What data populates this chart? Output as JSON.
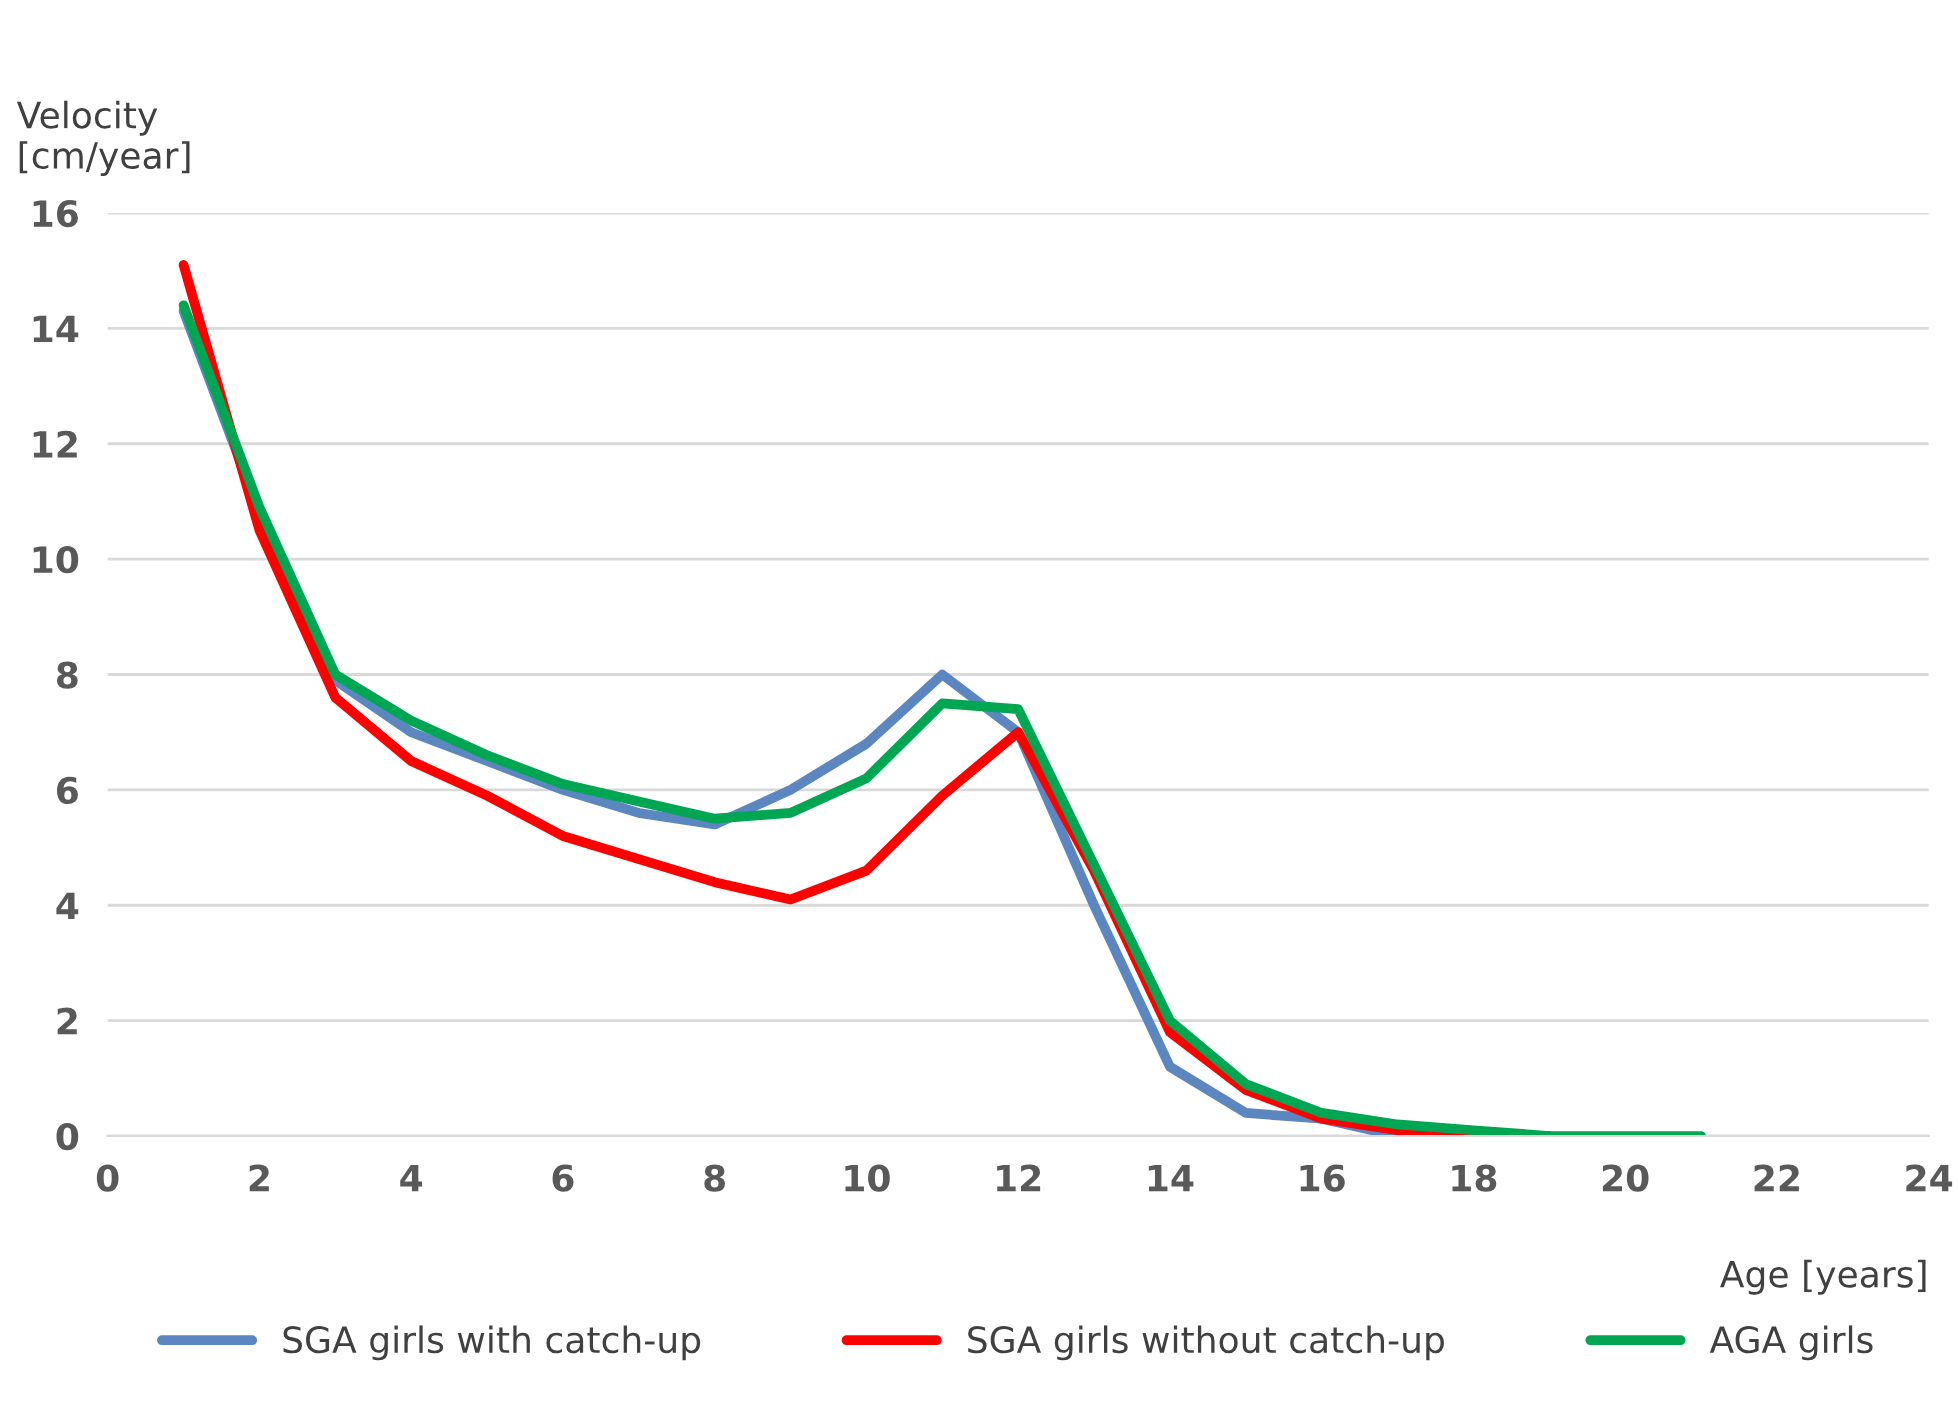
{
  "chart_data": {
    "type": "line",
    "xlabel": "Age [years]",
    "ylabel": "Velocity\n[cm/year]",
    "x": [
      1,
      2,
      3,
      4,
      5,
      6,
      7,
      8,
      9,
      10,
      11,
      12,
      13,
      14,
      15,
      16,
      17,
      18,
      19,
      20,
      21
    ],
    "series": [
      {
        "name": "SGA girls with catch-up",
        "color": "#5b86c0",
        "values": [
          14.3,
          10.8,
          7.9,
          7.0,
          6.5,
          6.0,
          5.6,
          5.4,
          6.0,
          6.8,
          8.0,
          7.0,
          4.0,
          1.2,
          0.4,
          0.3,
          0.0,
          0.0,
          null,
          null,
          null
        ]
      },
      {
        "name": "SGA girls without catch-up",
        "color": "#ff0000",
        "values": [
          15.1,
          10.5,
          7.6,
          6.5,
          5.9,
          5.2,
          4.8,
          4.4,
          4.1,
          4.6,
          5.9,
          7.0,
          4.6,
          1.8,
          0.8,
          0.3,
          0.1,
          0.0,
          0.0,
          null,
          null
        ]
      },
      {
        "name": "AGA girls",
        "color": "#00a651",
        "values": [
          14.4,
          10.9,
          8.0,
          7.2,
          6.6,
          6.1,
          5.8,
          5.5,
          5.6,
          6.2,
          7.5,
          7.4,
          4.7,
          2.0,
          0.9,
          0.4,
          0.2,
          0.1,
          0.0,
          0.0,
          0.0
        ]
      }
    ],
    "xlim": [
      0,
      24
    ],
    "xticks": [
      0,
      2,
      4,
      6,
      8,
      10,
      12,
      14,
      16,
      18,
      20,
      22,
      24
    ],
    "ylim": [
      0,
      16
    ],
    "yticks": [
      0,
      2,
      4,
      6,
      8,
      10,
      12,
      14,
      16
    ],
    "grid": "y",
    "legend": "bottom",
    "line_style": "solid",
    "marker": "none"
  }
}
